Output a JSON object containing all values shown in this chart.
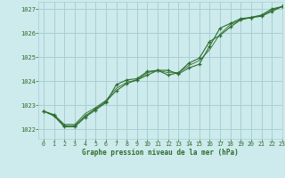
{
  "title": "Graphe pression niveau de la mer (hPa)",
  "bg_color": "#cdeaec",
  "grid_color": "#a8d0d4",
  "line_color": "#2d6e2d",
  "xlim": [
    -0.5,
    23
  ],
  "ylim": [
    1021.6,
    1027.3
  ],
  "yticks": [
    1022,
    1023,
    1024,
    1025,
    1026,
    1027
  ],
  "xticks": [
    0,
    1,
    2,
    3,
    4,
    5,
    6,
    7,
    8,
    9,
    10,
    11,
    12,
    13,
    14,
    15,
    16,
    17,
    18,
    19,
    20,
    21,
    22,
    23
  ],
  "series1_x": [
    0,
    1,
    2,
    3,
    4,
    5,
    6,
    7,
    8,
    9,
    10,
    11,
    12,
    13,
    14,
    15,
    16,
    17,
    18,
    19,
    20,
    21,
    22,
    23
  ],
  "series1_y": [
    1022.75,
    1022.6,
    1022.15,
    1022.15,
    1022.55,
    1022.85,
    1023.15,
    1023.6,
    1023.9,
    1024.05,
    1024.25,
    1024.45,
    1024.45,
    1024.3,
    1024.55,
    1024.7,
    1025.45,
    1026.2,
    1026.4,
    1026.6,
    1026.65,
    1026.75,
    1027.0,
    1027.1
  ],
  "series2_x": [
    0,
    1,
    2,
    3,
    4,
    5,
    6,
    7,
    8,
    9,
    10,
    11,
    12,
    13,
    14,
    15,
    16,
    17,
    18,
    19,
    20,
    21,
    22,
    23
  ],
  "series2_y": [
    1022.75,
    1022.55,
    1022.1,
    1022.1,
    1022.5,
    1022.8,
    1023.1,
    1023.85,
    1024.05,
    1024.1,
    1024.4,
    1024.45,
    1024.25,
    1024.35,
    1024.75,
    1024.95,
    1025.65,
    1025.9,
    1026.25,
    1026.55,
    1026.65,
    1026.7,
    1026.9,
    1027.1
  ],
  "series3_x": [
    0,
    1,
    2,
    3,
    4,
    5,
    6,
    7,
    8,
    9,
    10,
    11,
    12,
    13,
    14,
    15,
    16,
    17,
    18,
    19,
    20,
    21,
    22,
    23
  ],
  "series3_y": [
    1022.75,
    1022.6,
    1022.2,
    1022.2,
    1022.65,
    1022.9,
    1023.2,
    1023.7,
    1023.95,
    1024.05,
    1024.35,
    1024.45,
    1024.35,
    1024.35,
    1024.65,
    1024.85,
    1025.3,
    1025.95,
    1026.35,
    1026.55,
    1026.65,
    1026.7,
    1026.95,
    1027.1
  ]
}
